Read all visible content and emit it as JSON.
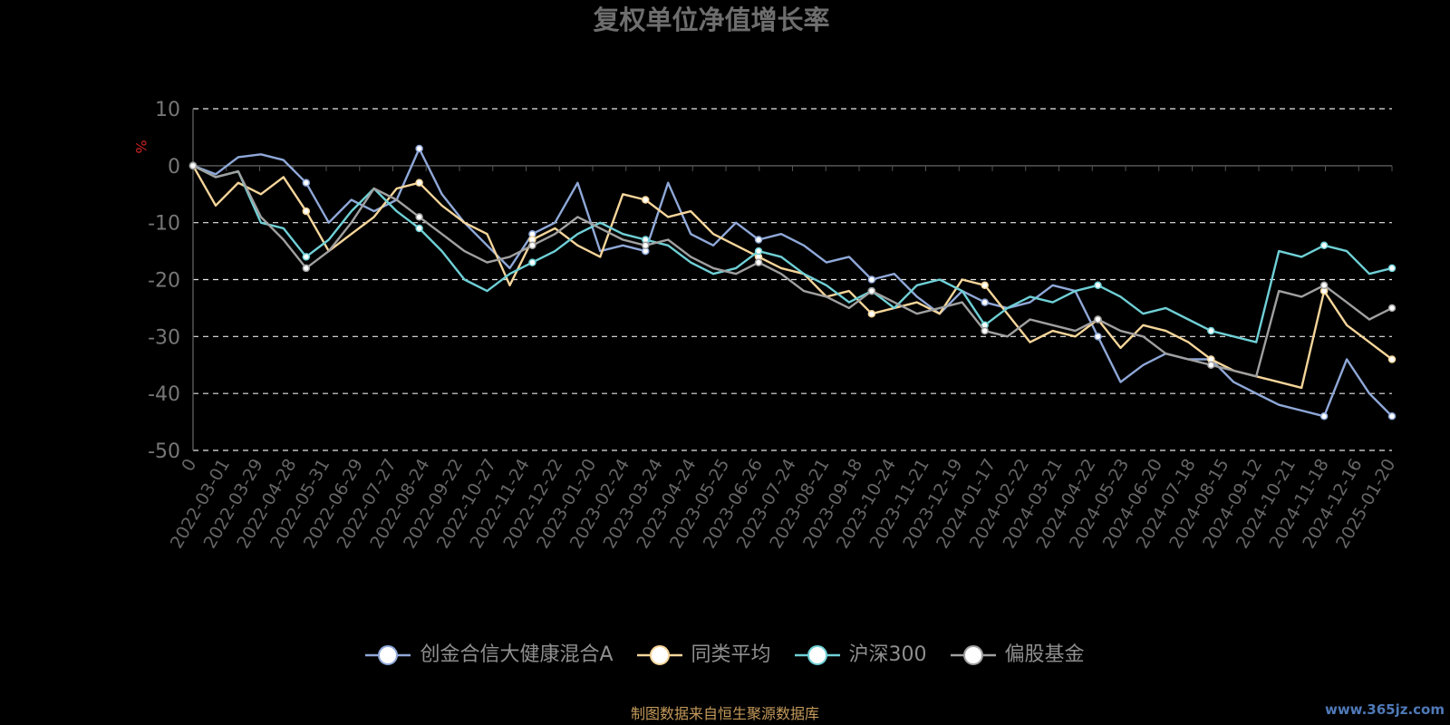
{
  "chart_data": {
    "type": "line",
    "title": "复权单位净值增长率",
    "ylabel": "%",
    "ylim": [
      -50,
      10
    ],
    "yticks": [
      10,
      0,
      -10,
      -20,
      -30,
      -40,
      -50
    ],
    "xlabels": [
      "0",
      "2022-03-01",
      "2022-03-29",
      "2022-04-28",
      "2022-05-31",
      "2022-06-29",
      "2022-07-27",
      "2022-08-24",
      "2022-09-22",
      "2022-10-27",
      "2022-11-24",
      "2022-12-22",
      "2023-01-20",
      "2023-02-24",
      "2023-03-24",
      "2023-04-24",
      "2023-05-25",
      "2023-06-26",
      "2023-07-24",
      "2023-08-21",
      "2023-09-18",
      "2023-10-24",
      "2023-11-21",
      "2023-12-19",
      "2024-01-17",
      "2024-02-22",
      "2024-03-21",
      "2024-04-22",
      "2024-05-23",
      "2024-06-20",
      "2024-07-18",
      "2024-08-15",
      "2024-09-12",
      "2024-10-21",
      "2024-11-18",
      "2024-12-16",
      "2025-01-20"
    ],
    "grid": true,
    "legend_position": "bottom-center",
    "series": [
      {
        "name": "创金合信大健康混合A",
        "color": "#8fa8d8",
        "values": [
          0,
          -1.5,
          1.5,
          2,
          1,
          -3,
          -10,
          -6,
          -8,
          -6,
          3,
          -5,
          -10,
          -14,
          -18,
          -12,
          -10,
          -3,
          -15,
          -14,
          -15,
          -3,
          -12,
          -14,
          -10,
          -13,
          -12,
          -14,
          -17,
          -16,
          -20,
          -19,
          -23,
          -26,
          -22,
          -24,
          -25,
          -24,
          -21,
          -22,
          -30,
          -38,
          -35,
          -33,
          -34,
          -34,
          -38,
          -40,
          -42,
          -43,
          -44,
          -34,
          -40,
          -44
        ]
      },
      {
        "name": "同类平均",
        "color": "#f5d59a",
        "values": [
          0,
          -7,
          -3,
          -5,
          -2,
          -8,
          -15,
          -12,
          -9,
          -4,
          -3,
          -7,
          -10,
          -12,
          -21,
          -13,
          -11,
          -14,
          -16,
          -5,
          -6,
          -9,
          -8,
          -12,
          -14,
          -16,
          -18,
          -19,
          -23,
          -22,
          -26,
          -25,
          -24,
          -26,
          -20,
          -21,
          -26,
          -31,
          -29,
          -30,
          -27,
          -32,
          -28,
          -29,
          -31,
          -34,
          -36,
          -37,
          -38,
          -39,
          -22,
          -28,
          -31,
          -34
        ]
      },
      {
        "name": "沪深300",
        "color": "#6fd0d6",
        "values": [
          0,
          -2,
          -1,
          -10,
          -11,
          -16,
          -13,
          -8,
          -4,
          -8,
          -11,
          -15,
          -20,
          -22,
          -19,
          -17,
          -15,
          -12,
          -10,
          -12,
          -13,
          -14,
          -17,
          -19,
          -18,
          -15,
          -16,
          -19,
          -21,
          -24,
          -22,
          -25,
          -21,
          -20,
          -22,
          -28,
          -25,
          -23,
          -24,
          -22,
          -21,
          -23,
          -26,
          -25,
          -27,
          -29,
          -30,
          -31,
          -15,
          -16,
          -14,
          -15,
          -19,
          -18
        ]
      },
      {
        "name": "偏股基金",
        "color": "#a0a0a0",
        "values": [
          0,
          -2,
          -1,
          -9,
          -13,
          -18,
          -15,
          -10,
          -4,
          -6,
          -9,
          -12,
          -15,
          -17,
          -16,
          -14,
          -12,
          -9,
          -11,
          -13,
          -14,
          -13,
          -16,
          -18,
          -19,
          -17,
          -19,
          -22,
          -23,
          -25,
          -22,
          -24,
          -26,
          -25,
          -24,
          -29,
          -30,
          -27,
          -28,
          -29,
          -27,
          -29,
          -30,
          -33,
          -34,
          -35,
          -36,
          -37,
          -22,
          -23,
          -21,
          -24,
          -27,
          -25
        ]
      }
    ]
  },
  "footer": {
    "source": "制图数据来自恒生聚源数据库",
    "watermark": "www.365jz.com"
  }
}
